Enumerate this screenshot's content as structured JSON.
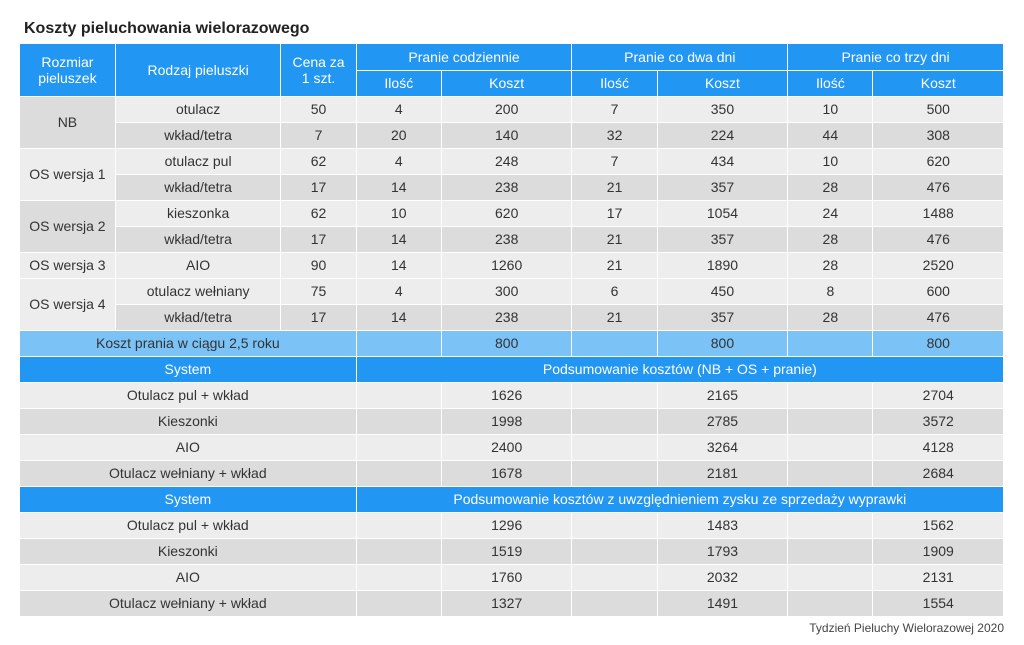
{
  "title": "Koszty pieluchowania wielorazowego",
  "footer": "Tydzień Pieluchy Wielorazowej 2020",
  "headers": {
    "size": "Rozmiar pieluszek",
    "type": "Rodzaj pieluszki",
    "price": "Cena za 1 szt.",
    "daily": "Pranie codziennie",
    "every2": "Pranie co dwa dni",
    "every3": "Pranie co trzy dni",
    "qty": "Ilość",
    "cost": "Koszt"
  },
  "sizes": {
    "nb": "NB",
    "os1": "OS wersja 1",
    "os2": "OS wersja 2",
    "os3": "OS wersja 3",
    "os4": "OS wersja 4"
  },
  "rows": {
    "r0": {
      "type": "otulacz",
      "price": "50",
      "q1": "4",
      "c1": "200",
      "q2": "7",
      "c2": "350",
      "q3": "10",
      "c3": "500"
    },
    "r1": {
      "type": "wkład/tetra",
      "price": "7",
      "q1": "20",
      "c1": "140",
      "q2": "32",
      "c2": "224",
      "q3": "44",
      "c3": "308"
    },
    "r2": {
      "type": "otulacz pul",
      "price": "62",
      "q1": "4",
      "c1": "248",
      "q2": "7",
      "c2": "434",
      "q3": "10",
      "c3": "620"
    },
    "r3": {
      "type": "wkład/tetra",
      "price": "17",
      "q1": "14",
      "c1": "238",
      "q2": "21",
      "c2": "357",
      "q3": "28",
      "c3": "476"
    },
    "r4": {
      "type": "kieszonka",
      "price": "62",
      "q1": "10",
      "c1": "620",
      "q2": "17",
      "c2": "1054",
      "q3": "24",
      "c3": "1488"
    },
    "r5": {
      "type": "wkład/tetra",
      "price": "17",
      "q1": "14",
      "c1": "238",
      "q2": "21",
      "c2": "357",
      "q3": "28",
      "c3": "476"
    },
    "r6": {
      "type": "AIO",
      "price": "90",
      "q1": "14",
      "c1": "1260",
      "q2": "21",
      "c2": "1890",
      "q3": "28",
      "c3": "2520"
    },
    "r7": {
      "type": "otulacz wełniany",
      "price": "75",
      "q1": "4",
      "c1": "300",
      "q2": "6",
      "c2": "450",
      "q3": "8",
      "c3": "600"
    },
    "r8": {
      "type": "wkład/tetra",
      "price": "17",
      "q1": "14",
      "c1": "238",
      "q2": "21",
      "c2": "357",
      "q3": "28",
      "c3": "476"
    }
  },
  "wash": {
    "label": "Koszt prania w ciągu 2,5 roku",
    "c1": "800",
    "c2": "800",
    "c3": "800"
  },
  "summary1": {
    "system": "System",
    "title": "Podsumowanie kosztów (NB + OS + pranie)",
    "s0": {
      "name": "Otulacz pul + wkład",
      "v1": "1626",
      "v2": "2165",
      "v3": "2704"
    },
    "s1": {
      "name": "Kieszonki",
      "v1": "1998",
      "v2": "2785",
      "v3": "3572"
    },
    "s2": {
      "name": "AIO",
      "v1": "2400",
      "v2": "3264",
      "v3": "4128"
    },
    "s3": {
      "name": "Otulacz wełniany + wkład",
      "v1": "1678",
      "v2": "2181",
      "v3": "2684"
    }
  },
  "summary2": {
    "system": "System",
    "title": "Podsumowanie kosztów z uwzględnieniem zysku ze sprzedaży wyprawki",
    "s0": {
      "name": "Otulacz pul + wkład",
      "v1": "1296",
      "v2": "1483",
      "v3": "1562"
    },
    "s1": {
      "name": "Kieszonki",
      "v1": "1519",
      "v2": "1793",
      "v3": "1909"
    },
    "s2": {
      "name": "AIO",
      "v1": "1760",
      "v2": "2032",
      "v3": "2131"
    },
    "s3": {
      "name": "Otulacz wełniany + wkład",
      "v1": "1327",
      "v2": "1491",
      "v3": "1554"
    }
  }
}
